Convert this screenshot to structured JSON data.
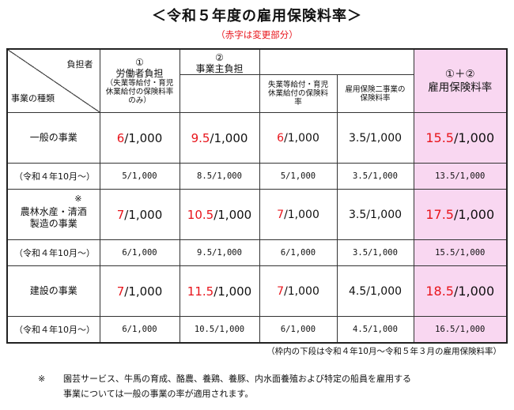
{
  "title": "＜令和５年度の雇用保険料率＞",
  "subtitle": "（赤字は変更部分）",
  "table": {
    "corner_top": "負担者",
    "corner_bottom": "事業の種類",
    "col1": {
      "num": "①",
      "label": "労働者負担",
      "note": "（失業等給付・育児休業給付の保険料率のみ）"
    },
    "col2": {
      "num": "②",
      "label": "事業主負担"
    },
    "col2a": "失業等給付・育児休業給付の保険料率",
    "col2b": "雇用保険二事業の保険料率",
    "col3": {
      "num": "①＋②",
      "label": "雇用保険料率"
    },
    "rows": [
      {
        "label": "一般の事業",
        "asterisk": "",
        "worker": {
          "red": "6",
          "rest": "/1,000"
        },
        "employer": {
          "red": "9.5",
          "rest": "/1,000"
        },
        "unemp": {
          "red": "6",
          "rest": "/1,000"
        },
        "two": "3.5/1,000",
        "total": {
          "red": "15.5",
          "rest": "/1,000"
        },
        "prev_label": "（令和４年10月～）",
        "prev": [
          "5/1,000",
          "8.5/1,000",
          "5/1,000",
          "3.5/1,000",
          "13.5/1,000"
        ]
      },
      {
        "label": "農林水産・清酒製造の事業",
        "asterisk": "※",
        "worker": {
          "red": "7",
          "rest": "/1,000"
        },
        "employer": {
          "red": "10.5",
          "rest": "/1,000"
        },
        "unemp": {
          "red": "7",
          "rest": "/1,000"
        },
        "two": "3.5/1,000",
        "total": {
          "red": "17.5",
          "rest": "/1,000"
        },
        "prev_label": "（令和４年10月～）",
        "prev": [
          "6/1,000",
          "9.5/1,000",
          "6/1,000",
          "3.5/1,000",
          "15.5/1,000"
        ]
      },
      {
        "label": "建設の事業",
        "asterisk": "",
        "worker": {
          "red": "7",
          "rest": "/1,000"
        },
        "employer": {
          "red": "11.5",
          "rest": "/1,000"
        },
        "unemp": {
          "red": "7",
          "rest": "/1,000"
        },
        "two": "4.5/1,000",
        "total": {
          "red": "18.5",
          "rest": "/1,000"
        },
        "prev_label": "（令和４年10月～）",
        "prev": [
          "6/1,000",
          "10.5/1,000",
          "6/1,000",
          "4.5/1,000",
          "16.5/1,000"
        ]
      }
    ]
  },
  "range_note": "（枠内の下段は令和４年10月～令和５年３月の雇用保険料率）",
  "footnote": {
    "mark": "※",
    "line1": "園芸サービス、牛馬の育成、酪農、養鶏、養豚、内水面養殖および特定の船員を雇用する",
    "line2": "事業については一般の事業の率が適用されます。"
  },
  "colors": {
    "accent_red": "#e8141b",
    "highlight_pink": "#f9d7f1"
  }
}
